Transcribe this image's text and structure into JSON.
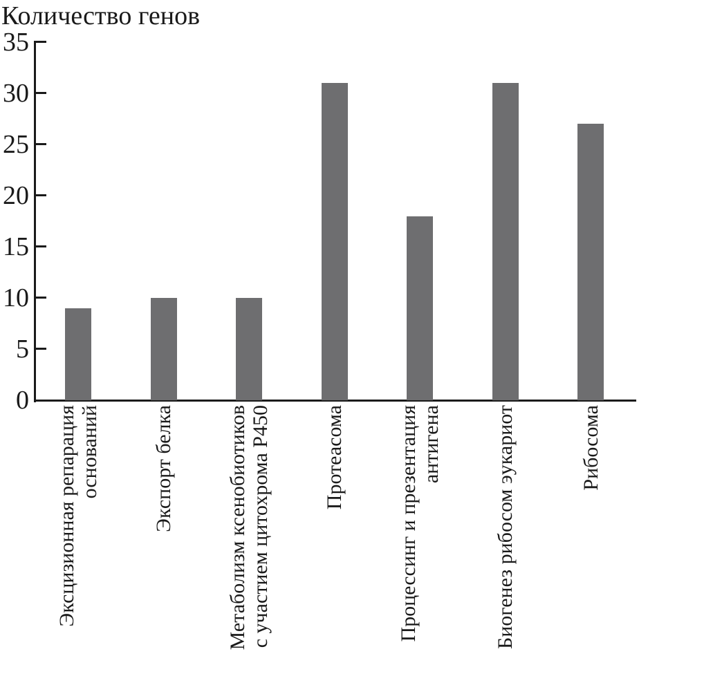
{
  "chart_data": {
    "type": "bar",
    "title": "Количество генов",
    "categories": [
      "Эксцизионная репарация оснований",
      "Экспорт белка",
      "Метаболизм ксенобиотиков с участием цитохрома Р450",
      "Протеасома",
      "Процессинг и презентация антигена",
      "Биогенез рибосом эукариот",
      "Рибосома"
    ],
    "categories_lines": [
      [
        "Эксцизионная репарация",
        "оснований"
      ],
      [
        "Экспорт белка"
      ],
      [
        "Метаболизм ксенобиотиков",
        "с участием цитохрома Р450"
      ],
      [
        "Протеасома"
      ],
      [
        "Процессинг и презентация",
        "антигена"
      ],
      [
        "Биогенез рибосом эукариот"
      ],
      [
        "Рибосома"
      ]
    ],
    "values": [
      9,
      10,
      10,
      31,
      18,
      31,
      27
    ],
    "xlabel": "",
    "ylabel": "Количество генов",
    "ylim": [
      0,
      35
    ],
    "yticks": [
      0,
      5,
      10,
      15,
      20,
      25,
      30,
      35
    ],
    "grid": "off",
    "legend": "none",
    "bar_color": "#6e6e70",
    "axis_color": "#1a1a1a"
  }
}
